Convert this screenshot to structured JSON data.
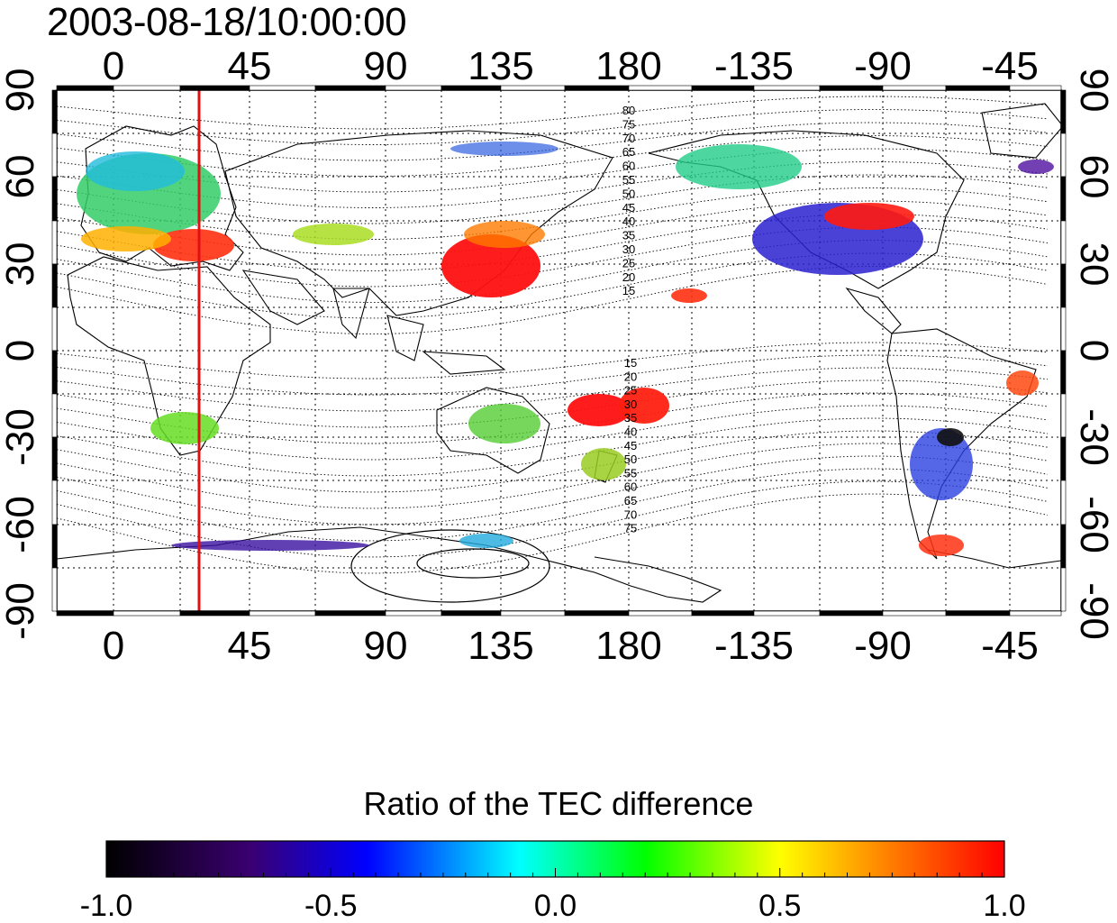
{
  "timestamp": "2003-08-18/10:00:00",
  "map": {
    "lon_ticks": [
      "0",
      "45",
      "90",
      "135",
      "180",
      "-135",
      "-90",
      "-45"
    ],
    "lat_ticks": [
      "90",
      "60",
      "30",
      "0",
      "-30",
      "-60",
      "-90"
    ],
    "contour_labels_north": [
      "80",
      "75",
      "70",
      "65",
      "60",
      "55",
      "50",
      "45",
      "40",
      "35",
      "30",
      "25",
      "20",
      "15"
    ],
    "contour_labels_south": [
      "15",
      "20",
      "25",
      "30",
      "35",
      "40",
      "45",
      "50",
      "55",
      "60",
      "65",
      "70",
      "75"
    ],
    "marker_line_color": "#e01010"
  },
  "colorbar": {
    "title": "Ratio of the TEC difference",
    "ticks": [
      "-1.0",
      "-0.5",
      "0.0",
      "0.5",
      "1.0"
    ],
    "colors": [
      "#000000",
      "#3a0070",
      "#0000ff",
      "#00ffff",
      "#00ff00",
      "#ffff00",
      "#ff8000",
      "#ff0000"
    ]
  }
}
